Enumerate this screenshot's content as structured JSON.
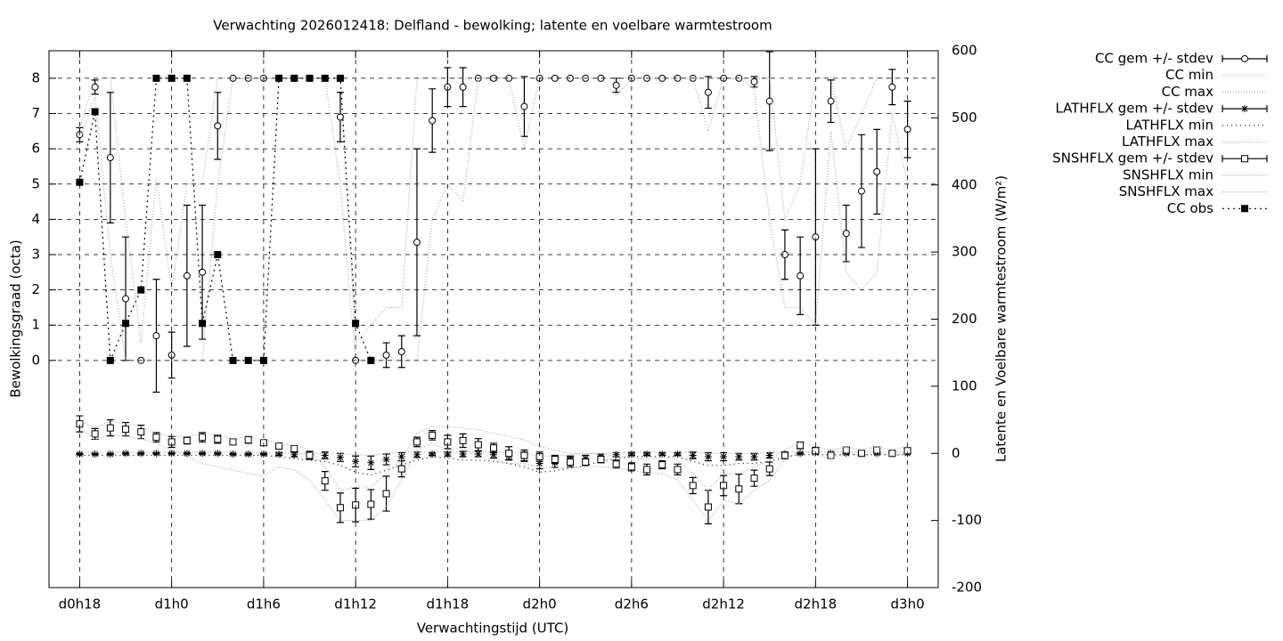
{
  "chart_data": {
    "type": "errorbars",
    "title": "Verwachting 2026012418: Delfland - bewolking; latente en voelbare warmtestroom",
    "xlabel": "Verwachtingstijd (UTC)",
    "ylabel": "Bewolkingsgraad (octa)",
    "y2label": "Latente en Voelbare warmtestroom (W/m²)",
    "grid": true,
    "legend": "right",
    "xlim": [
      16,
      74
    ],
    "ylim": [
      -6.44,
      8.78
    ],
    "y2lim": [
      -200,
      600
    ],
    "xticks": [
      {
        "value": 18,
        "label": "d0h18"
      },
      {
        "value": 24,
        "label": "d1h0"
      },
      {
        "value": 30,
        "label": "d1h6"
      },
      {
        "value": 36,
        "label": "d1h12"
      },
      {
        "value": 42,
        "label": "d1h18"
      },
      {
        "value": 48,
        "label": "d2h0"
      },
      {
        "value": 54,
        "label": "d2h6"
      },
      {
        "value": 60,
        "label": "d2h12"
      },
      {
        "value": 66,
        "label": "d2h18"
      },
      {
        "value": 72,
        "label": "d3h0"
      }
    ],
    "yticks": [
      0,
      1,
      2,
      3,
      4,
      5,
      6,
      7,
      8
    ],
    "y2ticks": [
      -200,
      -100,
      0,
      100,
      200,
      300,
      400,
      500,
      600
    ],
    "x": [
      18,
      19,
      20,
      21,
      22,
      23,
      24,
      25,
      26,
      27,
      28,
      29,
      30,
      31,
      32,
      33,
      34,
      35,
      36,
      37,
      38,
      39,
      40,
      41,
      42,
      43,
      44,
      45,
      46,
      47,
      48,
      49,
      50,
      51,
      52,
      53,
      54,
      55,
      56,
      57,
      58,
      59,
      60,
      61,
      62,
      63,
      64,
      65,
      66,
      67,
      68,
      69,
      70,
      71,
      72
    ],
    "series": [
      {
        "name": "CC gem +/- stdev",
        "color": "#000000",
        "axis": "y",
        "marker": "circle",
        "values": [
          6.4,
          7.75,
          5.75,
          1.75,
          0,
          0.7,
          0.15,
          2.4,
          2.5,
          6.65,
          8,
          8,
          8,
          8,
          8,
          8,
          8,
          6.9,
          0,
          0,
          0.15,
          0.25,
          3.35,
          6.8,
          7.75,
          7.75,
          8,
          8,
          8,
          7.2,
          8,
          8,
          8,
          8,
          8,
          7.8,
          8,
          8,
          8,
          8,
          8,
          7.6,
          8,
          8,
          7.9,
          7.35,
          3.0,
          2.4,
          3.5,
          7.35,
          3.6,
          4.8,
          5.35,
          7.75,
          6.55
        ],
        "errors": [
          0.2,
          0.2,
          1.85,
          1.75,
          0,
          1.6,
          0.65,
          2.0,
          1.9,
          0.95,
          0,
          0,
          0,
          0,
          0,
          0,
          0,
          0.7,
          0,
          0,
          0.35,
          0.45,
          2.65,
          0.9,
          0.55,
          0.55,
          0,
          0.05,
          0,
          0.85,
          0,
          0,
          0,
          0,
          0,
          0.2,
          0,
          0,
          0,
          0,
          0,
          0.45,
          0,
          0,
          0.15,
          1.4,
          0.7,
          1.1,
          2.5,
          0.6,
          0.8,
          1.6,
          1.2,
          0.5,
          0.8
        ]
      },
      {
        "name": "CC min",
        "color": "#aaaaaa",
        "axis": "y",
        "dash": "1,2",
        "values": [
          6.2,
          7.5,
          3,
          0,
          0,
          0,
          0,
          0,
          0,
          5,
          8,
          8,
          8,
          8,
          8,
          8,
          8,
          5,
          0,
          0,
          0,
          0,
          0,
          4,
          5,
          4.5,
          8,
          8,
          8,
          6,
          8,
          8,
          8,
          8,
          8,
          7.5,
          8,
          8,
          8,
          8,
          8,
          6.5,
          8,
          8,
          7.7,
          4,
          1.5,
          1.5,
          1,
          6.5,
          2.5,
          2,
          2.5,
          7,
          5
        ]
      },
      {
        "name": "CC max",
        "color": "#aaaaaa",
        "axis": "y",
        "dash": "1,2",
        "values": [
          6.6,
          8,
          8,
          4,
          0.5,
          5.2,
          2,
          5,
          5,
          8,
          8,
          8,
          8,
          8,
          8,
          8,
          8,
          8,
          0.5,
          1,
          1.5,
          1.5,
          8,
          8,
          8,
          8,
          8,
          8,
          8,
          8,
          8,
          8,
          8,
          8,
          8,
          8,
          8,
          8,
          8,
          8,
          8,
          8,
          8,
          8,
          8,
          8,
          4,
          5,
          8,
          8,
          6,
          7,
          8,
          8,
          8
        ]
      },
      {
        "name": "LATHFLX gem +/- stdev",
        "color": "#000000",
        "axis": "y2",
        "marker": "star",
        "values": [
          -1,
          -1,
          -1,
          0,
          0,
          0,
          0,
          0,
          0,
          0,
          -1,
          -1,
          -1,
          -1,
          -2,
          -3,
          -3,
          -6,
          -12,
          -14,
          -9,
          -5,
          -2,
          -1,
          -1,
          -1,
          -1,
          -2,
          -3,
          -5,
          -15,
          -14,
          -10,
          -8,
          -5,
          -2,
          -1,
          -1,
          -1,
          -1,
          -3,
          -5,
          -5,
          -5,
          -5,
          -3,
          -1,
          0,
          1,
          0,
          0,
          0,
          0,
          0,
          0
        ],
        "errors": [
          1,
          1,
          1,
          1,
          1,
          1,
          1,
          1,
          1,
          1,
          1,
          1,
          1,
          2,
          3,
          4,
          5,
          6,
          8,
          10,
          8,
          6,
          4,
          2,
          3,
          4,
          4,
          5,
          6,
          7,
          8,
          7,
          6,
          5,
          4,
          3,
          2,
          2,
          2,
          2,
          5,
          6,
          6,
          5,
          5,
          4,
          2,
          1,
          1,
          1,
          1,
          1,
          1,
          1,
          1
        ]
      },
      {
        "name": "LATHFLX min",
        "color": "#000000",
        "axis": "y2",
        "dash": "1,4",
        "values": [
          -3,
          -3,
          -3,
          -3,
          -3,
          -3,
          -3,
          -3,
          -3,
          -3,
          -3,
          -3,
          -3,
          -5,
          -8,
          -10,
          -12,
          -18,
          -28,
          -32,
          -25,
          -17,
          -10,
          -5,
          -7,
          -10,
          -10,
          -12,
          -15,
          -20,
          -28,
          -26,
          -22,
          -18,
          -12,
          -8,
          -5,
          -5,
          -5,
          -5,
          -12,
          -18,
          -18,
          -15,
          -15,
          -12,
          -5,
          -2,
          -2,
          -2,
          -2,
          -2,
          -2,
          -2,
          -2
        ]
      },
      {
        "name": "LATHFLX max",
        "color": "#aaaaaa",
        "axis": "y2",
        "dash": "1,2",
        "values": [
          1,
          1,
          1,
          2,
          2,
          2,
          2,
          2,
          2,
          2,
          1,
          1,
          1,
          1,
          0,
          0,
          0,
          0,
          -2,
          -3,
          0,
          2,
          2,
          2,
          2,
          2,
          2,
          2,
          1,
          0,
          -5,
          -4,
          -2,
          -1,
          0,
          1,
          2,
          2,
          2,
          2,
          1,
          0,
          0,
          0,
          0,
          1,
          2,
          2,
          3,
          2,
          2,
          2,
          2,
          2,
          2
        ]
      },
      {
        "name": "SNSHFLX gem +/- stdev",
        "color": "#000000",
        "axis": "y2",
        "marker": "square",
        "values": [
          44,
          29,
          38,
          36,
          32,
          24,
          17,
          19,
          24,
          21,
          17,
          20,
          16,
          11,
          7,
          -3,
          -41,
          -81,
          -77,
          -76,
          -60,
          -23,
          17,
          27,
          17,
          19,
          13,
          8,
          0,
          -3,
          -5,
          -9,
          -13,
          -13,
          -9,
          -16,
          -20,
          -24,
          -17,
          -24,
          -48,
          -80,
          -48,
          -53,
          -37,
          -23,
          -3,
          12,
          4,
          -3,
          5,
          0,
          5,
          0,
          4
        ],
        "errors": [
          12,
          8,
          12,
          10,
          10,
          7,
          8,
          5,
          7,
          6,
          4,
          5,
          4,
          4,
          4,
          6,
          14,
          22,
          25,
          22,
          26,
          12,
          7,
          7,
          10,
          10,
          9,
          7,
          10,
          8,
          7,
          6,
          7,
          5,
          5,
          6,
          6,
          8,
          6,
          8,
          12,
          25,
          15,
          22,
          12,
          10,
          5,
          5,
          5,
          4,
          4,
          3,
          4,
          3,
          4
        ]
      },
      {
        "name": "SNSHFLX min",
        "color": "#aaaaaa",
        "axis": "y2",
        "dash": "1,2",
        "values": [
          40,
          20,
          28,
          26,
          22,
          15,
          5,
          -5,
          -15,
          -20,
          -25,
          -30,
          -33,
          -20,
          -25,
          -40,
          -70,
          -100,
          -100,
          -100,
          -80,
          -40,
          5,
          15,
          5,
          8,
          -5,
          -10,
          -15,
          -15,
          -20,
          -22,
          -22,
          -20,
          -20,
          -22,
          -25,
          -30,
          -30,
          -40,
          -70,
          -100,
          -70,
          -75,
          -55,
          -40,
          -10,
          5,
          -2,
          -8,
          0,
          -3,
          0,
          -3,
          0
        ]
      },
      {
        "name": "SNSHFLX max",
        "color": "#aaaaaa",
        "axis": "y2",
        "dash": "1,2",
        "values": [
          48,
          38,
          48,
          44,
          40,
          30,
          25,
          25,
          30,
          27,
          22,
          25,
          20,
          15,
          12,
          5,
          -20,
          -55,
          -50,
          -50,
          -30,
          -10,
          30,
          40,
          40,
          38,
          35,
          30,
          25,
          20,
          10,
          5,
          0,
          0,
          0,
          -5,
          -5,
          -10,
          -5,
          -10,
          -30,
          -55,
          -30,
          -30,
          -20,
          -10,
          5,
          18,
          10,
          5,
          10,
          5,
          10,
          5,
          10
        ]
      },
      {
        "name": "CC obs",
        "color": "#000000",
        "axis": "y",
        "marker": "filled-square",
        "dash": "2,4",
        "values": [
          5.05,
          7.05,
          0,
          1.05,
          2,
          8,
          8,
          8,
          1.05,
          3,
          0,
          0,
          0,
          8,
          8,
          8,
          8,
          8,
          1.05,
          0,
          null,
          null,
          null,
          null,
          null,
          null,
          null,
          null,
          null,
          null,
          null,
          null,
          null,
          null,
          null,
          null,
          null,
          null,
          null,
          null,
          null,
          null,
          null,
          null,
          null,
          null,
          null,
          null,
          null,
          null,
          null,
          null,
          null,
          null,
          null
        ]
      }
    ]
  }
}
